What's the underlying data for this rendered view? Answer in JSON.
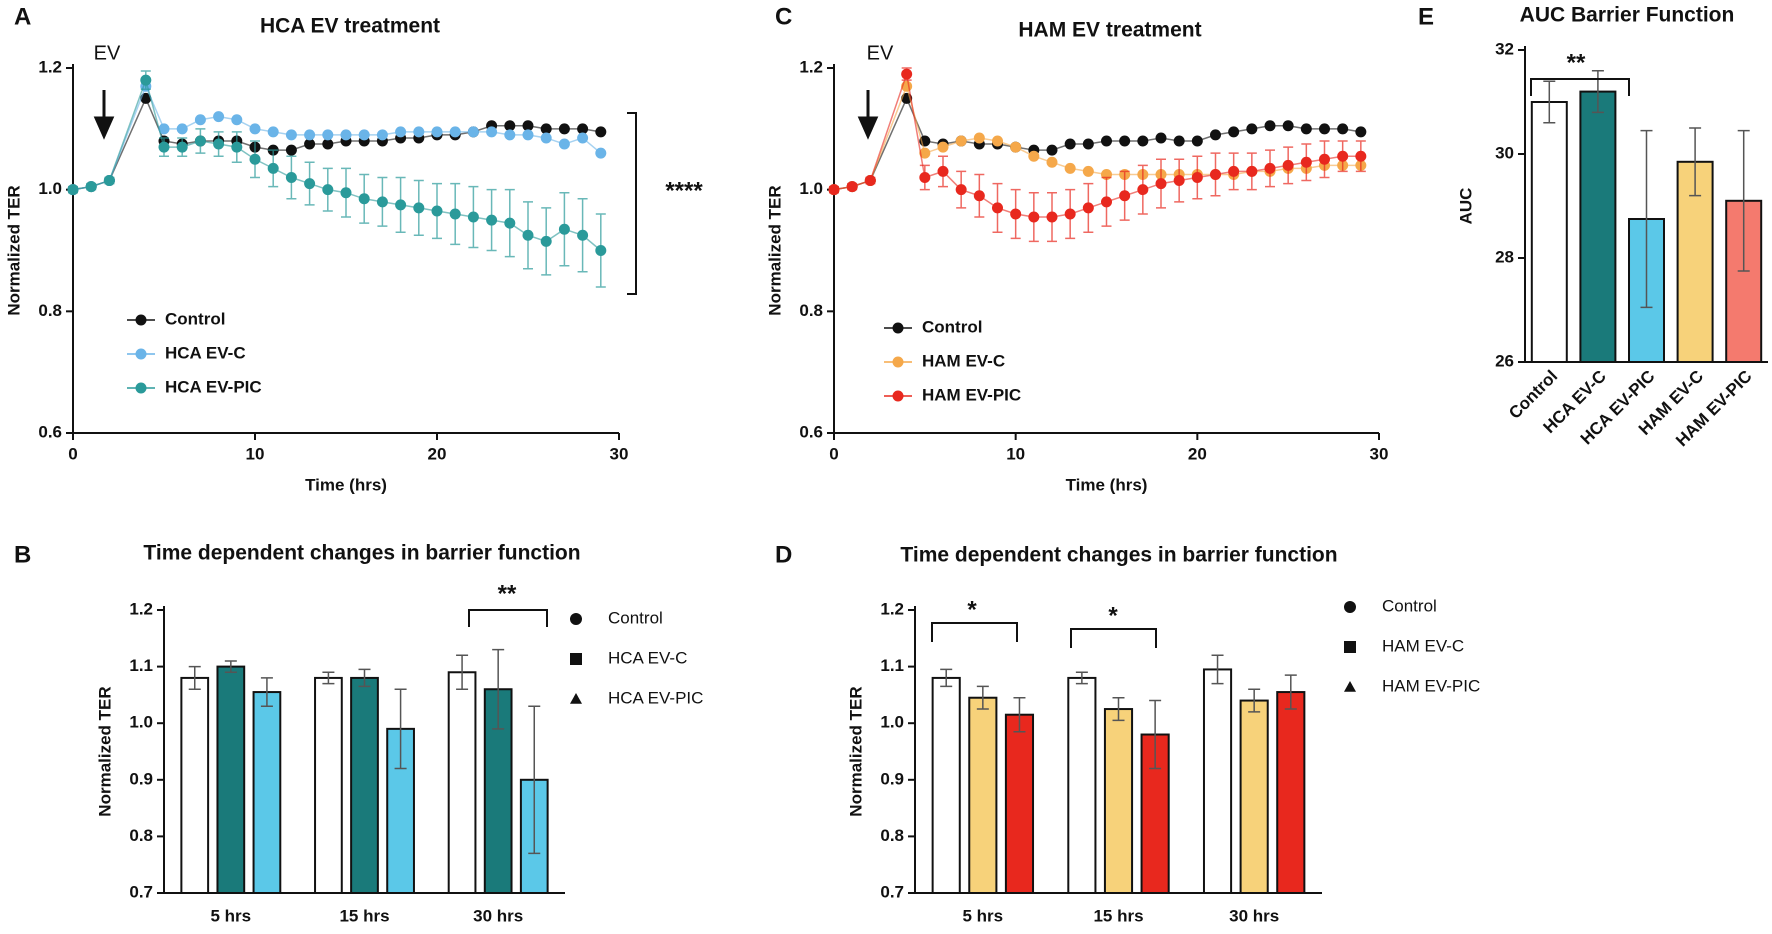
{
  "chart_data": [
    {
      "panel": "A",
      "type": "line",
      "title": "HCA EV treatment",
      "x_label": "Time (hrs)",
      "y_label": "Normalized TER",
      "x": [
        0,
        1,
        2,
        4,
        5,
        6,
        7,
        8,
        9,
        10,
        11,
        12,
        13,
        14,
        15,
        16,
        17,
        18,
        19,
        20,
        21,
        22,
        23,
        24,
        25,
        26,
        27,
        28,
        29
      ],
      "xlim": [
        0,
        30
      ],
      "xticks": [
        0,
        10,
        20,
        30
      ],
      "ylim": [
        0.6,
        1.2
      ],
      "yticks": [
        0.6,
        0.8,
        {
          "value": 1,
          "label": "1.0"
        },
        1.2
      ],
      "legend": "lower-left",
      "annotations": [
        "EV",
        "****"
      ],
      "series": [
        {
          "name": "Control",
          "color": "#111111",
          "values": [
            1.0,
            1.005,
            1.015,
            1.15,
            1.08,
            1.075,
            1.08,
            1.08,
            1.08,
            1.07,
            1.065,
            1.065,
            1.075,
            1.075,
            1.08,
            1.08,
            1.08,
            1.085,
            1.085,
            1.09,
            1.09,
            1.095,
            1.105,
            1.105,
            1.105,
            1.1,
            1.1,
            1.1,
            1.095
          ]
        },
        {
          "name": "HCA EV-C",
          "color": "#6ab4e8",
          "values": [
            1.0,
            1.005,
            1.015,
            1.17,
            1.1,
            1.1,
            1.115,
            1.12,
            1.115,
            1.1,
            1.095,
            1.09,
            1.09,
            1.09,
            1.09,
            1.09,
            1.09,
            1.095,
            1.095,
            1.095,
            1.095,
            1.095,
            1.095,
            1.09,
            1.09,
            1.085,
            1.075,
            1.085,
            1.06
          ]
        },
        {
          "name": "HCA EV-PIC",
          "color": "#2a9a9a",
          "values": [
            1.0,
            1.005,
            1.015,
            1.18,
            1.07,
            1.07,
            1.08,
            1.075,
            1.07,
            1.05,
            1.035,
            1.02,
            1.01,
            1.0,
            0.995,
            0.985,
            0.98,
            0.975,
            0.97,
            0.965,
            0.96,
            0.955,
            0.95,
            0.945,
            0.925,
            0.915,
            0.935,
            0.925,
            0.9
          ],
          "errors": [
            0.005,
            0.005,
            0.005,
            0.015,
            0.015,
            0.015,
            0.02,
            0.02,
            0.025,
            0.03,
            0.03,
            0.035,
            0.035,
            0.035,
            0.04,
            0.04,
            0.04,
            0.045,
            0.045,
            0.045,
            0.05,
            0.05,
            0.05,
            0.055,
            0.055,
            0.055,
            0.06,
            0.06,
            0.06
          ]
        }
      ]
    },
    {
      "panel": "B",
      "type": "groupbar",
      "title": "Time dependent changes in barrier function",
      "y_label": "Normalized TER",
      "categories": [
        "5 hrs",
        "15 hrs",
        "30 hrs"
      ],
      "ylim": [
        0.7,
        1.2
      ],
      "yticks": [
        0.7,
        0.8,
        0.9,
        {
          "value": 1,
          "label": "1.0"
        },
        1.1,
        1.2
      ],
      "annotations": [
        "**"
      ],
      "series": [
        {
          "name": "Control",
          "color": "#ffffff",
          "marker": "circle",
          "values": [
            1.08,
            1.08,
            1.09
          ],
          "errors": [
            0.02,
            0.01,
            0.03
          ]
        },
        {
          "name": "HCA EV-C",
          "color": "#1a7a7a",
          "marker": "square",
          "values": [
            1.1,
            1.08,
            1.06
          ],
          "errors": [
            0.01,
            0.015,
            0.07
          ]
        },
        {
          "name": "HCA EV-PIC",
          "color": "#5bc8e8",
          "marker": "triangle",
          "values": [
            1.055,
            0.99,
            0.9
          ],
          "errors": [
            0.025,
            0.07,
            0.13
          ]
        }
      ]
    },
    {
      "panel": "C",
      "type": "line",
      "title": "HAM EV treatment",
      "x_label": "Time (hrs)",
      "y_label": "Normalized TER",
      "x": [
        0,
        1,
        2,
        4,
        5,
        6,
        7,
        8,
        9,
        10,
        11,
        12,
        13,
        14,
        15,
        16,
        17,
        18,
        19,
        20,
        21,
        22,
        23,
        24,
        25,
        26,
        27,
        28,
        29
      ],
      "xlim": [
        0,
        30
      ],
      "xticks": [
        0,
        10,
        20,
        30
      ],
      "ylim": [
        0.6,
        1.2
      ],
      "yticks": [
        0.6,
        0.8,
        {
          "value": 1,
          "label": "1.0"
        },
        1.2
      ],
      "legend": "lower-left",
      "annotations": [
        "EV"
      ],
      "series": [
        {
          "name": "Control",
          "color": "#111111",
          "values": [
            1.0,
            1.005,
            1.015,
            1.15,
            1.08,
            1.075,
            1.08,
            1.075,
            1.075,
            1.07,
            1.065,
            1.065,
            1.075,
            1.075,
            1.08,
            1.08,
            1.08,
            1.085,
            1.08,
            1.08,
            1.09,
            1.095,
            1.1,
            1.105,
            1.105,
            1.1,
            1.1,
            1.1,
            1.095
          ]
        },
        {
          "name": "HAM EV-C",
          "color": "#f5a84a",
          "values": [
            1.0,
            1.005,
            1.015,
            1.17,
            1.06,
            1.07,
            1.08,
            1.085,
            1.08,
            1.07,
            1.055,
            1.045,
            1.035,
            1.03,
            1.025,
            1.025,
            1.025,
            1.025,
            1.025,
            1.025,
            1.025,
            1.025,
            1.03,
            1.03,
            1.035,
            1.035,
            1.04,
            1.04,
            1.04
          ]
        },
        {
          "name": "HAM EV-PIC",
          "color": "#e8281e",
          "values": [
            1.0,
            1.005,
            1.015,
            1.19,
            1.02,
            1.03,
            1.0,
            0.99,
            0.97,
            0.96,
            0.955,
            0.955,
            0.96,
            0.97,
            0.98,
            0.99,
            1.0,
            1.01,
            1.015,
            1.02,
            1.025,
            1.03,
            1.03,
            1.035,
            1.04,
            1.045,
            1.05,
            1.055,
            1.055
          ],
          "errors": [
            0.005,
            0.005,
            0.005,
            0.01,
            0.02,
            0.025,
            0.03,
            0.035,
            0.04,
            0.04,
            0.04,
            0.04,
            0.04,
            0.04,
            0.04,
            0.04,
            0.04,
            0.04,
            0.035,
            0.035,
            0.035,
            0.03,
            0.03,
            0.03,
            0.03,
            0.03,
            0.03,
            0.025,
            0.025
          ]
        }
      ]
    },
    {
      "panel": "D",
      "type": "groupbar",
      "title": "Time dependent changes in barrier function",
      "y_label": "Normalized TER",
      "categories": [
        "5 hrs",
        "15 hrs",
        "30 hrs"
      ],
      "ylim": [
        0.7,
        1.2
      ],
      "yticks": [
        0.7,
        0.8,
        0.9,
        {
          "value": 1,
          "label": "1.0"
        },
        1.1,
        1.2
      ],
      "annotations": [
        "*",
        "*"
      ],
      "series": [
        {
          "name": "Control",
          "color": "#ffffff",
          "marker": "circle",
          "values": [
            1.08,
            1.08,
            1.095
          ],
          "errors": [
            0.015,
            0.01,
            0.025
          ]
        },
        {
          "name": "HAM EV-C",
          "color": "#f7d27a",
          "marker": "square",
          "values": [
            1.045,
            1.025,
            1.04
          ],
          "errors": [
            0.02,
            0.02,
            0.02
          ]
        },
        {
          "name": "HAM EV-PIC",
          "color": "#e8281e",
          "marker": "triangle",
          "values": [
            1.015,
            0.98,
            1.055
          ],
          "errors": [
            0.03,
            0.06,
            0.03
          ]
        }
      ]
    },
    {
      "panel": "E",
      "type": "bar",
      "title": "AUC Barrier Function",
      "y_label": "AUC",
      "categories": [
        "Control",
        "HCA EV-C",
        "HCA EV-PIC",
        "HAM EV-C",
        "HAM EV-PIC"
      ],
      "values": [
        31.0,
        31.2,
        28.75,
        29.85,
        29.1
      ],
      "errors": [
        0.4,
        0.4,
        1.7,
        0.65,
        1.35
      ],
      "colors": [
        "#ffffff",
        "#1a7a7a",
        "#5bc8e8",
        "#f7d27a",
        "#f47a6e"
      ],
      "ylim": [
        26,
        32
      ],
      "yticks": [
        26,
        28,
        30,
        32
      ],
      "annotations": [
        "**"
      ]
    }
  ]
}
